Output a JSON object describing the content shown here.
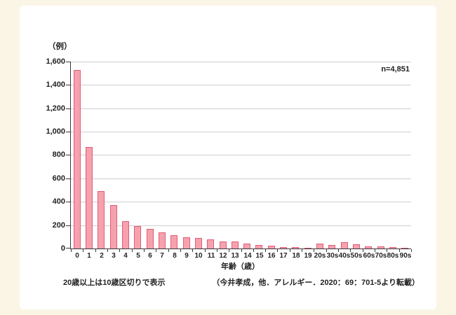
{
  "chart": {
    "y_unit_label": "（例）",
    "n_label": "n=4,851",
    "xlabel": "年齢（歳）",
    "note": "20歳以上は10歳区切りで表示",
    "source": "（今井孝成，他．アレルギー．2020：69：701-5より転載）"
  },
  "chart_data": {
    "type": "bar",
    "title": "",
    "y_unit_label": "（例）",
    "n_label": "n=4,851",
    "xlabel": "年齢（歳）",
    "note": "20歳以上は10歳区切りで表示",
    "source": "（今井孝成，他．アレルギー．2020：69：701-5より転載）",
    "categories": [
      "0",
      "1",
      "2",
      "3",
      "4",
      "5",
      "6",
      "7",
      "8",
      "9",
      "10",
      "11",
      "12",
      "13",
      "14",
      "15",
      "16",
      "17",
      "18",
      "19",
      "20s",
      "30s",
      "40s",
      "50s",
      "60s",
      "70s",
      "80s",
      "90s"
    ],
    "values": [
      1530,
      870,
      490,
      370,
      235,
      190,
      170,
      140,
      115,
      95,
      90,
      80,
      62,
      58,
      40,
      28,
      26,
      14,
      10,
      5,
      40,
      32,
      52,
      34,
      15,
      18,
      9,
      5
    ],
    "ylim": [
      0,
      1600
    ],
    "ytick_interval": 200,
    "ytick_labels": [
      "0",
      "200",
      "400",
      "600",
      "800",
      "1,000",
      "1,200",
      "1,400",
      "1,600"
    ],
    "grid": true,
    "legend": "none",
    "bar_fill": "#f5a2ae",
    "bar_border": "#e25c74",
    "gridline_color": "#cfcfcf",
    "axis_color": "#3a3a3a",
    "background_color": "#faf5e5",
    "panel_color": "#ffffff"
  }
}
